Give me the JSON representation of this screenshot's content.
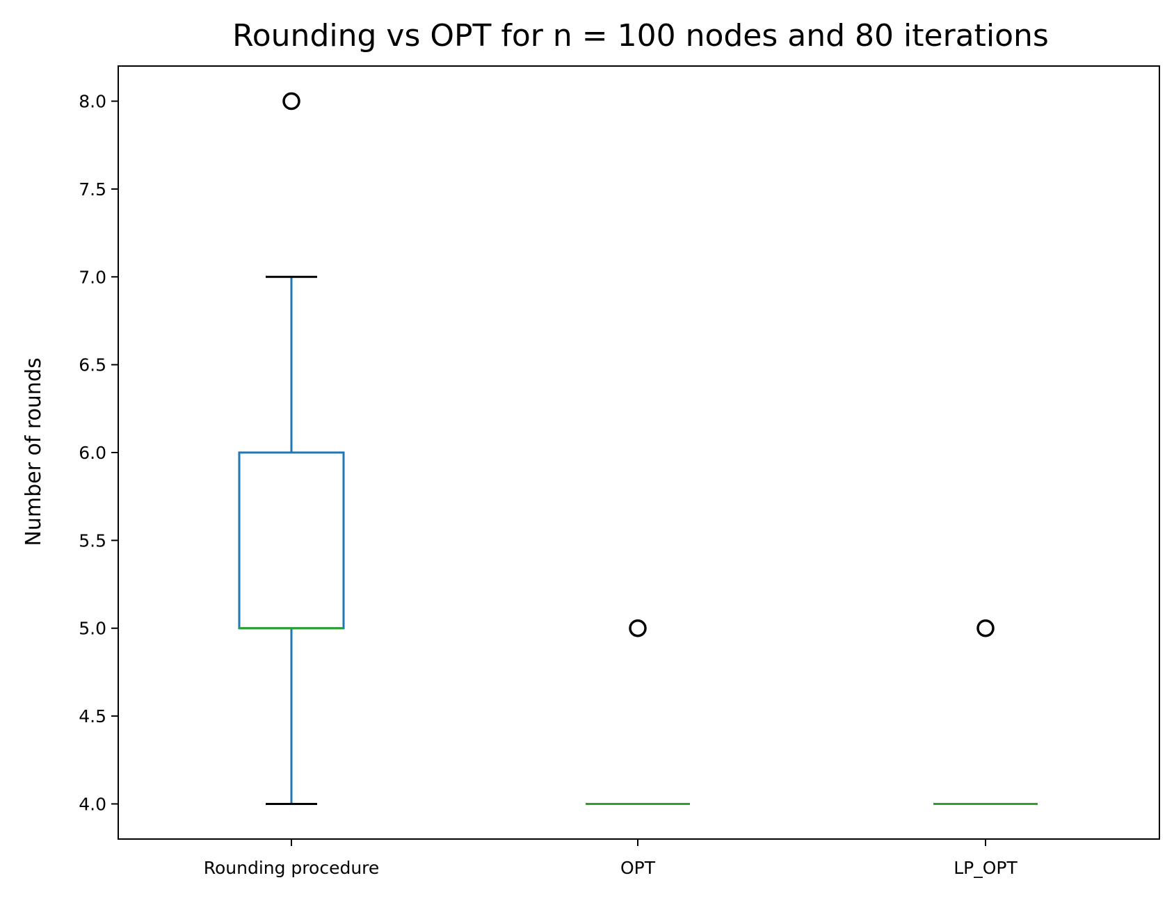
{
  "chart_data": {
    "type": "box",
    "title": "Rounding vs OPT for n = 100 nodes and 80 iterations",
    "xlabel": "",
    "ylabel": "Number of rounds",
    "ylim": [
      3.8,
      8.2
    ],
    "yticks": [
      "4.0",
      "4.5",
      "5.0",
      "5.5",
      "6.0",
      "6.5",
      "7.0",
      "7.5",
      "8.0"
    ],
    "yticks_values": [
      4.0,
      4.5,
      5.0,
      5.5,
      6.0,
      6.5,
      7.0,
      7.5,
      8.0
    ],
    "grid": false,
    "categories": [
      "Rounding procedure",
      "OPT",
      "LP_OPT"
    ],
    "boxes": [
      {
        "category": "Rounding procedure",
        "whisker_low": 4.0,
        "q1": 5.0,
        "median": 5.0,
        "q3": 6.0,
        "whisker_high": 7.0,
        "outliers": [
          8.0
        ]
      },
      {
        "category": "OPT",
        "whisker_low": 4.0,
        "q1": 4.0,
        "median": 4.0,
        "q3": 4.0,
        "whisker_high": 4.0,
        "outliers": [
          5.0
        ]
      },
      {
        "category": "LP_OPT",
        "whisker_low": 4.0,
        "q1": 4.0,
        "median": 4.0,
        "q3": 4.0,
        "whisker_high": 4.0,
        "outliers": [
          5.0
        ]
      }
    ],
    "colors": {
      "box": "#1f77b4",
      "median": "#2ca02c",
      "cap": "#000000",
      "outlier": "#000000",
      "axes": "#000000"
    }
  }
}
